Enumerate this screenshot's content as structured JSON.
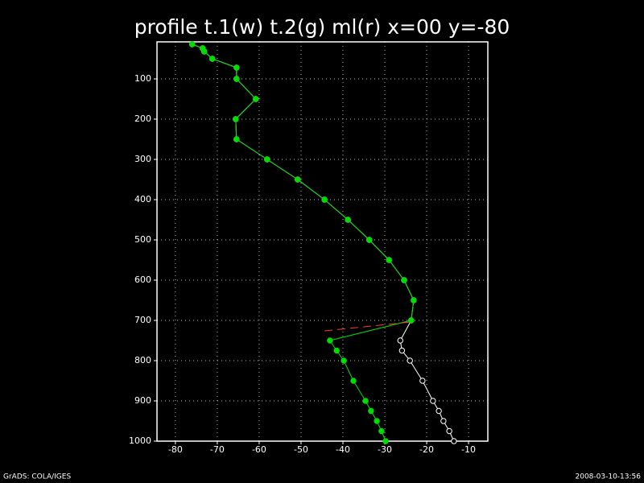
{
  "chart_data": {
    "type": "profile",
    "title": "profile t.1(w) t.2(g) ml(r) x=00 y=-80",
    "footer_left": "GrADS: COLA/IGES",
    "footer_right": "2008-03-10-13:56",
    "xlim": [
      -84.4,
      -5.4
    ],
    "ylim": [
      1000,
      8
    ],
    "xticks": [
      -80,
      -70,
      -60,
      -50,
      -40,
      -30,
      -20,
      -10
    ],
    "yticks": [
      100,
      200,
      300,
      400,
      500,
      600,
      700,
      800,
      900,
      1000
    ],
    "grid": true,
    "series": [
      {
        "color": "#ffffff",
        "marker": "open",
        "line_style": "solid",
        "x": [
          -76.0,
          -73.5,
          -73.1,
          -71.2,
          -65.4,
          -65.4,
          -60.8,
          -65.6,
          -65.4,
          -58.1,
          -50.8,
          -44.4,
          -38.8,
          -33.7,
          -29.0,
          -25.4,
          -23.1,
          -23.7,
          -26.3,
          -25.9,
          -24.0,
          -21.0,
          -18.5,
          -17.1,
          -16.0,
          -14.6,
          -13.5
        ],
        "y": [
          14,
          24,
          32,
          50,
          72,
          100,
          150,
          200,
          250,
          300,
          350,
          400,
          450,
          500,
          550,
          600,
          650,
          700,
          750,
          775,
          800,
          850,
          900,
          925,
          950,
          975,
          1000
        ]
      },
      {
        "color": "#00dc00",
        "marker": "filled",
        "line_style": "solid",
        "x": [
          -76.0,
          -73.5,
          -73.1,
          -71.2,
          -65.4,
          -65.4,
          -60.8,
          -65.6,
          -65.4,
          -58.1,
          -50.8,
          -44.4,
          -38.8,
          -33.7,
          -29.0,
          -25.4,
          -23.1,
          -23.7,
          -43.1,
          -41.5,
          -39.8,
          -37.5,
          -34.6,
          -33.3,
          -31.9,
          -30.8,
          -29.8
        ],
        "y": [
          14,
          24,
          32,
          50,
          72,
          100,
          150,
          200,
          250,
          300,
          350,
          400,
          450,
          500,
          550,
          600,
          650,
          700,
          750,
          775,
          800,
          850,
          900,
          925,
          950,
          975,
          1000
        ]
      },
      {
        "color": "#fa3c3c",
        "marker": "none",
        "line_style": "dashed",
        "x": [
          -44.4,
          -23.8
        ],
        "y": [
          726,
          704
        ]
      }
    ]
  }
}
